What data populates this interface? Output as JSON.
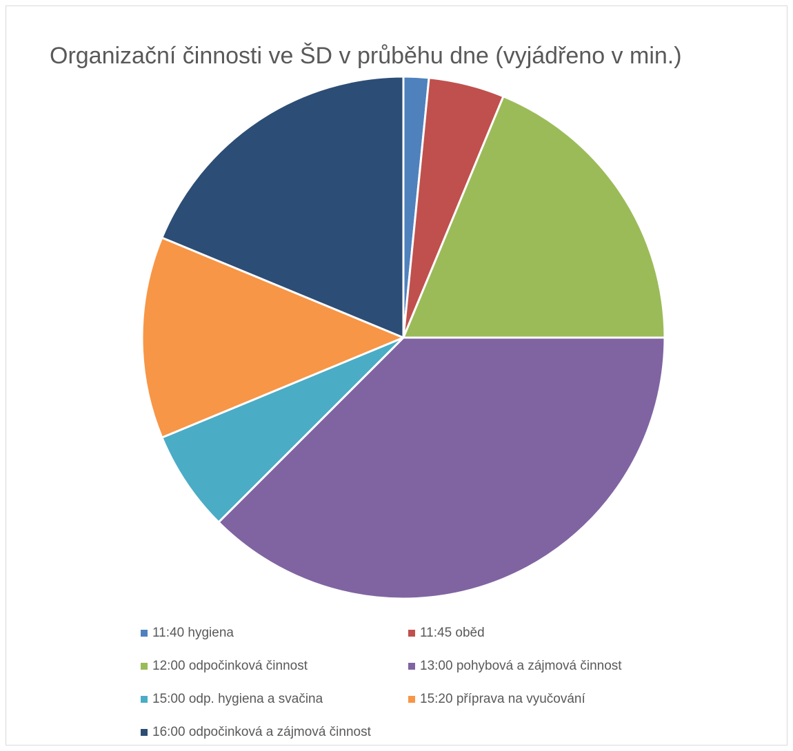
{
  "chart_data": {
    "type": "pie",
    "title": "Organizační činnosti ve ŠD v průběhu dne (vyjádřeno v min.)",
    "legend_position": "bottom",
    "unit": "min.",
    "slices": [
      {
        "label": "11:40 hygiena",
        "value": 5,
        "color": "#4F81BD"
      },
      {
        "label": "11:45 oběd",
        "value": 15,
        "color": "#C0504D"
      },
      {
        "label": "12:00 odpočinková činnost",
        "value": 60,
        "color": "#9BBB59"
      },
      {
        "label": "13:00 pohybová a zájmová činnost",
        "value": 120,
        "color": "#8064A2"
      },
      {
        "label": "15:00 odp. hygiena a svačina",
        "value": 20,
        "color": "#4BACC6"
      },
      {
        "label": "15:20 příprava na vyučování",
        "value": 40,
        "color": "#F79646"
      },
      {
        "label": "16:00 odpočinková a zájmová činnost",
        "value": 60,
        "color": "#2C4D75"
      }
    ]
  }
}
